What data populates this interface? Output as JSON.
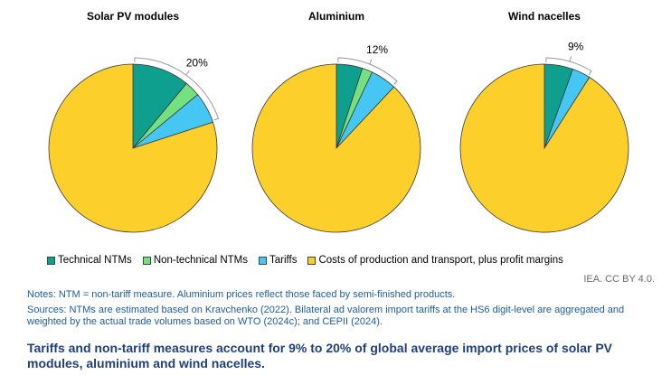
{
  "chart_data": [
    {
      "type": "pie",
      "title": "Solar PV modules",
      "bracket_label": "20%",
      "slices": [
        {
          "name": "Technical NTMs",
          "value": 11
        },
        {
          "name": "Non-technical NTMs",
          "value": 3
        },
        {
          "name": "Tariffs",
          "value": 6
        },
        {
          "name": "Costs of production and transport, plus profit margins",
          "value": 80
        }
      ]
    },
    {
      "type": "pie",
      "title": "Aluminium",
      "bracket_label": "12%",
      "slices": [
        {
          "name": "Technical NTMs",
          "value": 5
        },
        {
          "name": "Non-technical NTMs",
          "value": 2
        },
        {
          "name": "Tariffs",
          "value": 5
        },
        {
          "name": "Costs of production and transport, plus profit margins",
          "value": 88
        }
      ]
    },
    {
      "type": "pie",
      "title": "Wind nacelles",
      "bracket_label": "9%",
      "slices": [
        {
          "name": "Technical NTMs",
          "value": 5.5
        },
        {
          "name": "Tariffs",
          "value": 3.5
        },
        {
          "name": "Costs of production and transport, plus profit margins",
          "value": 91
        }
      ]
    }
  ],
  "legend": [
    {
      "label": "Technical NTMs",
      "color": "#0f9f8f"
    },
    {
      "label": "Non-technical NTMs",
      "color": "#74e07f"
    },
    {
      "label": "Tariffs",
      "color": "#46c6f2"
    },
    {
      "label": "Costs of production and transport, plus profit margins",
      "color": "#fccf2a"
    }
  ],
  "credit": "IEA. CC BY 4.0.",
  "notes": "Notes: NTM = non-tariff measure. Aluminium prices reflect those faced by semi-finished products.",
  "sources": "Sources: NTMs are estimated based on Kravchenko (2022). Bilateral ad valorem import tariffs at the HS6 digit-level are aggregated and weighted by the actual trade volumes based on WTO (2024c); and CEPII (2024).",
  "caption": "Tariffs and non-tariff measures account for 9% to 20% of global average import prices of solar PV modules, aluminium and wind nacelles."
}
